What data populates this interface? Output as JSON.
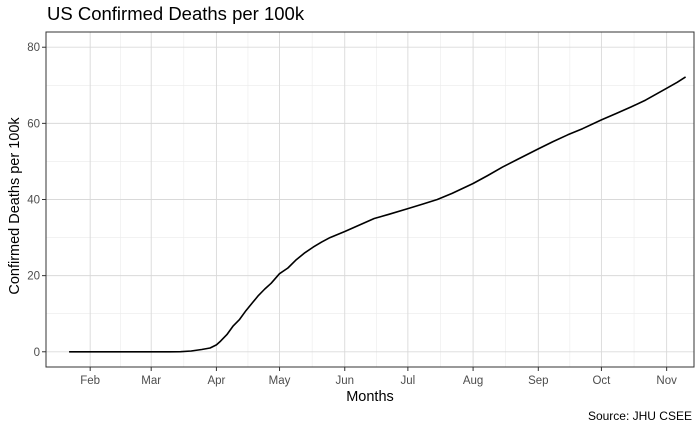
{
  "chart_data": {
    "type": "line",
    "title": "US Confirmed Deaths per 100k",
    "xlabel": "Months",
    "ylabel": "Confirmed Deaths per 100k",
    "caption": "Source: JHU CSEE",
    "ylim": [
      -4,
      84
    ],
    "yticks": [
      0,
      20,
      40,
      60,
      80
    ],
    "xlim": [
      "2020-01-11",
      "2020-11-14"
    ],
    "xticks": [
      {
        "date": "2020-02-01",
        "label": "Feb"
      },
      {
        "date": "2020-03-01",
        "label": "Mar"
      },
      {
        "date": "2020-04-01",
        "label": "Apr"
      },
      {
        "date": "2020-05-01",
        "label": "May"
      },
      {
        "date": "2020-06-01",
        "label": "Jun"
      },
      {
        "date": "2020-07-01",
        "label": "Jul"
      },
      {
        "date": "2020-08-01",
        "label": "Aug"
      },
      {
        "date": "2020-09-01",
        "label": "Sep"
      },
      {
        "date": "2020-10-01",
        "label": "Oct"
      },
      {
        "date": "2020-11-01",
        "label": "Nov"
      }
    ],
    "grid": true,
    "line_color": "#000000",
    "series": [
      {
        "points": [
          [
            "2020-01-22",
            0
          ],
          [
            "2020-02-01",
            0
          ],
          [
            "2020-02-15",
            0
          ],
          [
            "2020-03-01",
            0
          ],
          [
            "2020-03-10",
            0
          ],
          [
            "2020-03-15",
            0.03
          ],
          [
            "2020-03-20",
            0.2
          ],
          [
            "2020-03-25",
            0.6
          ],
          [
            "2020-03-29",
            1.0
          ],
          [
            "2020-04-01",
            1.8
          ],
          [
            "2020-04-03",
            2.8
          ],
          [
            "2020-04-06",
            4.5
          ],
          [
            "2020-04-09",
            6.8
          ],
          [
            "2020-04-12",
            8.5
          ],
          [
            "2020-04-15",
            10.8
          ],
          [
            "2020-04-18",
            12.8
          ],
          [
            "2020-04-21",
            14.8
          ],
          [
            "2020-04-24",
            16.5
          ],
          [
            "2020-04-27",
            18.0
          ],
          [
            "2020-05-01",
            20.5
          ],
          [
            "2020-05-05",
            22.0
          ],
          [
            "2020-05-09",
            24.2
          ],
          [
            "2020-05-13",
            26.0
          ],
          [
            "2020-05-17",
            27.5
          ],
          [
            "2020-05-21",
            28.8
          ],
          [
            "2020-05-25",
            30.0
          ],
          [
            "2020-06-01",
            31.6
          ],
          [
            "2020-06-08",
            33.3
          ],
          [
            "2020-06-15",
            35.0
          ],
          [
            "2020-06-22",
            36.1
          ],
          [
            "2020-07-01",
            37.6
          ],
          [
            "2020-07-08",
            38.8
          ],
          [
            "2020-07-15",
            40.0
          ],
          [
            "2020-07-22",
            41.6
          ],
          [
            "2020-08-01",
            44.2
          ],
          [
            "2020-08-08",
            46.3
          ],
          [
            "2020-08-15",
            48.5
          ],
          [
            "2020-08-22",
            50.5
          ],
          [
            "2020-09-01",
            53.3
          ],
          [
            "2020-09-08",
            55.2
          ],
          [
            "2020-09-15",
            57.0
          ],
          [
            "2020-09-22",
            58.6
          ],
          [
            "2020-10-01",
            60.9
          ],
          [
            "2020-10-08",
            62.6
          ],
          [
            "2020-10-15",
            64.3
          ],
          [
            "2020-10-22",
            66.1
          ],
          [
            "2020-11-01",
            69.2
          ],
          [
            "2020-11-06",
            70.8
          ],
          [
            "2020-11-10",
            72.2
          ]
        ]
      }
    ]
  }
}
